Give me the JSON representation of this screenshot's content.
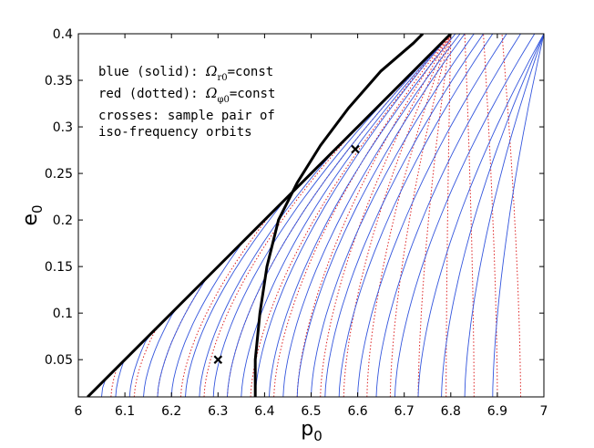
{
  "chart_data": {
    "type": "line",
    "title": "",
    "xlabel": "p",
    "xlabel_sub": "0",
    "ylabel": "e",
    "ylabel_sub": "0",
    "xlim": [
      6,
      7
    ],
    "ylim": [
      0.01,
      0.4
    ],
    "x_ticks": [
      "6",
      "6.1",
      "6.2",
      "6.3",
      "6.4",
      "6.5",
      "6.6",
      "6.7",
      "6.8",
      "6.9",
      "7"
    ],
    "y_ticks": [
      "0.05",
      "0.1",
      "0.15",
      "0.2",
      "0.25",
      "0.3",
      "0.35",
      "0.4"
    ],
    "grid": false,
    "colors": {
      "blue": "#3355dd",
      "red": "#dd2222",
      "boundary": "#000000"
    },
    "annotations": {
      "line1_prefix": "blue (solid): ",
      "line1_symbol": "Ω",
      "line1_sub": "r0",
      "line1_suffix": "=const",
      "line2_prefix": "red (dotted): ",
      "line2_symbol": "Ω",
      "line2_sub": "φ0",
      "line2_suffix": "=const",
      "line3": "crosses: sample pair of",
      "line4": "iso-frequency orbits"
    },
    "separatrix": {
      "name": "p = 6 + 2e",
      "points": [
        [
          6.02,
          0.01
        ],
        [
          6.8,
          0.4
        ]
      ]
    },
    "isco_curve": {
      "name": "thick black curve",
      "points": [
        [
          6.38,
          0.01
        ],
        [
          6.38,
          0.05
        ],
        [
          6.39,
          0.1
        ],
        [
          6.405,
          0.15
        ],
        [
          6.43,
          0.2
        ],
        [
          6.47,
          0.24
        ],
        [
          6.52,
          0.28
        ],
        [
          6.58,
          0.32
        ],
        [
          6.65,
          0.36
        ],
        [
          6.72,
          0.39
        ],
        [
          6.74,
          0.4
        ]
      ]
    },
    "sample_points": [
      {
        "x": 6.3,
        "y": 0.05
      },
      {
        "x": 6.595,
        "y": 0.276
      }
    ],
    "blue_curves": {
      "style": "solid",
      "intercepts": [
        6.05,
        6.08,
        6.11,
        6.14,
        6.17,
        6.2,
        6.23,
        6.26,
        6.29,
        6.32,
        6.35,
        6.38,
        6.41,
        6.44,
        6.47,
        6.5,
        6.53,
        6.56,
        6.6,
        6.64,
        6.68,
        6.73,
        6.78,
        6.83,
        6.89
      ],
      "top_intercepts": [
        6.8,
        6.8,
        6.8,
        6.8,
        6.8,
        6.8,
        6.8,
        6.8,
        6.8,
        6.8,
        6.8,
        6.8,
        6.81,
        6.82,
        6.83,
        6.85,
        6.87,
        6.89,
        6.92,
        6.95,
        6.98,
        7.0,
        7.0,
        7.0,
        7.0
      ]
    },
    "red_curves": {
      "style": "dotted",
      "intercepts": [
        6.07,
        6.12,
        6.17,
        6.22,
        6.27,
        6.32,
        6.37,
        6.42,
        6.47,
        6.52,
        6.57,
        6.62,
        6.67,
        6.73,
        6.79,
        6.85,
        6.9,
        6.95
      ],
      "top_intercepts": [
        6.8,
        6.8,
        6.8,
        6.8,
        6.8,
        6.8,
        6.8,
        6.8,
        6.8,
        6.8,
        6.8,
        6.8,
        6.8,
        6.8,
        6.8,
        6.83,
        6.87,
        6.91
      ]
    }
  }
}
